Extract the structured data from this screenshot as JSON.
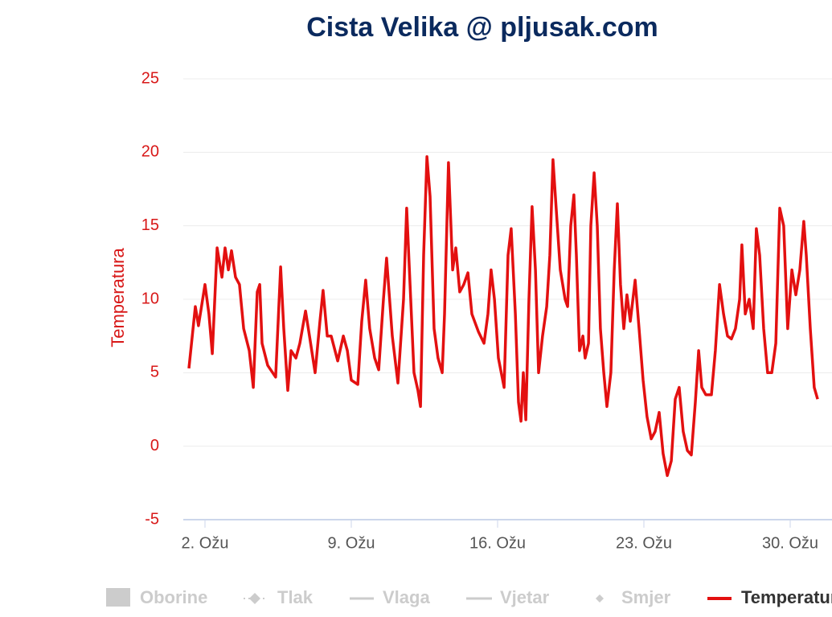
{
  "chart_data": {
    "type": "line",
    "title": "Cista Velika @ pljusak.com",
    "ylabel": "Temperatura",
    "xlim": [
      1,
      31.5
    ],
    "xticks": [
      {
        "value": 2,
        "label": "2. Ožu"
      },
      {
        "value": 9,
        "label": "9. Ožu"
      },
      {
        "value": 16,
        "label": "16. Ožu"
      },
      {
        "value": 23,
        "label": "23. Ožu"
      },
      {
        "value": 30,
        "label": "30. Ožu"
      }
    ],
    "ylim": [
      -5,
      25
    ],
    "yticks": [
      -5,
      0,
      5,
      10,
      15,
      20,
      25
    ],
    "grid": true,
    "legend_hidden": [
      "Oborine",
      "Tlak",
      "Vlaga",
      "Vjetar",
      "Smjer"
    ],
    "series": [
      {
        "name": "Temperatura",
        "color": "#e31010",
        "x": [
          1.23,
          1.54,
          1.69,
          2.0,
          2.19,
          2.35,
          2.58,
          2.81,
          2.96,
          3.12,
          3.27,
          3.46,
          3.65,
          3.85,
          4.12,
          4.31,
          4.5,
          4.62,
          4.73,
          5.0,
          5.38,
          5.62,
          5.77,
          5.96,
          6.12,
          6.35,
          6.54,
          6.81,
          7.0,
          7.27,
          7.5,
          7.65,
          7.85,
          8.04,
          8.35,
          8.62,
          8.81,
          9.0,
          9.31,
          9.5,
          9.69,
          9.88,
          10.12,
          10.31,
          10.54,
          10.69,
          10.96,
          11.23,
          11.5,
          11.65,
          11.81,
          12.0,
          12.19,
          12.31,
          12.46,
          12.62,
          12.77,
          12.96,
          13.15,
          13.35,
          13.46,
          13.65,
          13.85,
          14.0,
          14.19,
          14.38,
          14.58,
          14.77,
          15.08,
          15.35,
          15.54,
          15.69,
          15.85,
          16.04,
          16.31,
          16.5,
          16.65,
          16.85,
          17.0,
          17.12,
          17.23,
          17.35,
          17.5,
          17.65,
          17.81,
          17.96,
          18.15,
          18.35,
          18.5,
          18.65,
          18.81,
          19.0,
          19.23,
          19.35,
          19.5,
          19.65,
          19.77,
          19.92,
          20.08,
          20.19,
          20.35,
          20.46,
          20.62,
          20.77,
          20.92,
          21.08,
          21.23,
          21.42,
          21.58,
          21.73,
          21.88,
          22.04,
          22.19,
          22.35,
          22.58,
          22.77,
          22.96,
          23.15,
          23.35,
          23.54,
          23.73,
          23.92,
          24.12,
          24.31,
          24.5,
          24.69,
          24.88,
          25.08,
          25.27,
          25.46,
          25.62,
          25.77,
          25.96,
          26.23,
          26.42,
          26.62,
          26.81,
          27.0,
          27.19,
          27.38,
          27.58,
          27.69,
          27.85,
          28.04,
          28.23,
          28.38,
          28.54,
          28.73,
          28.92,
          29.12,
          29.31,
          29.5,
          29.69,
          29.88,
          30.08,
          30.27,
          30.46,
          30.65,
          30.77,
          30.96,
          31.15,
          31.31
        ],
        "values": [
          5.3,
          9.5,
          8.2,
          11,
          9,
          6.3,
          13.5,
          11.5,
          13.5,
          12,
          13.3,
          11.5,
          11,
          8,
          6.5,
          4,
          10.5,
          11,
          7,
          5.5,
          4.7,
          12.2,
          8,
          3.8,
          6.5,
          6,
          7,
          9.2,
          7.5,
          5,
          8.5,
          10.6,
          7.5,
          7.5,
          5.8,
          7.5,
          6.5,
          4.5,
          4.2,
          8.5,
          11.3,
          8,
          6,
          5.2,
          10,
          12.8,
          7.5,
          4.3,
          10,
          16.2,
          11,
          5,
          3.8,
          2.7,
          13,
          19.7,
          17,
          8,
          6,
          5,
          9,
          19.3,
          12,
          13.5,
          10.5,
          11,
          11.8,
          9,
          7.8,
          7,
          9,
          12,
          10,
          6,
          4,
          13,
          14.8,
          9,
          3,
          1.7,
          5,
          1.8,
          10,
          16.3,
          12,
          5,
          7.5,
          9.5,
          13,
          19.5,
          16,
          12,
          10,
          9.5,
          15,
          17.1,
          13,
          6.5,
          7.5,
          6,
          7,
          15,
          18.6,
          15,
          8,
          5,
          2.7,
          5,
          12,
          16.5,
          11,
          8,
          10.3,
          8.5,
          11.3,
          8,
          4.5,
          2,
          0.5,
          1,
          2.3,
          -0.5,
          -2,
          -1,
          3.2,
          4,
          1,
          -0.3,
          -0.6,
          3,
          6.5,
          4,
          3.5,
          3.5,
          6.5,
          11,
          9,
          7.5,
          7.3,
          8,
          10,
          13.7,
          9,
          10,
          8,
          14.8,
          13,
          8,
          5,
          5,
          7,
          16.2,
          15,
          8,
          12,
          10.3,
          12,
          15.3,
          13,
          8,
          4,
          3.2
        ]
      }
    ]
  }
}
